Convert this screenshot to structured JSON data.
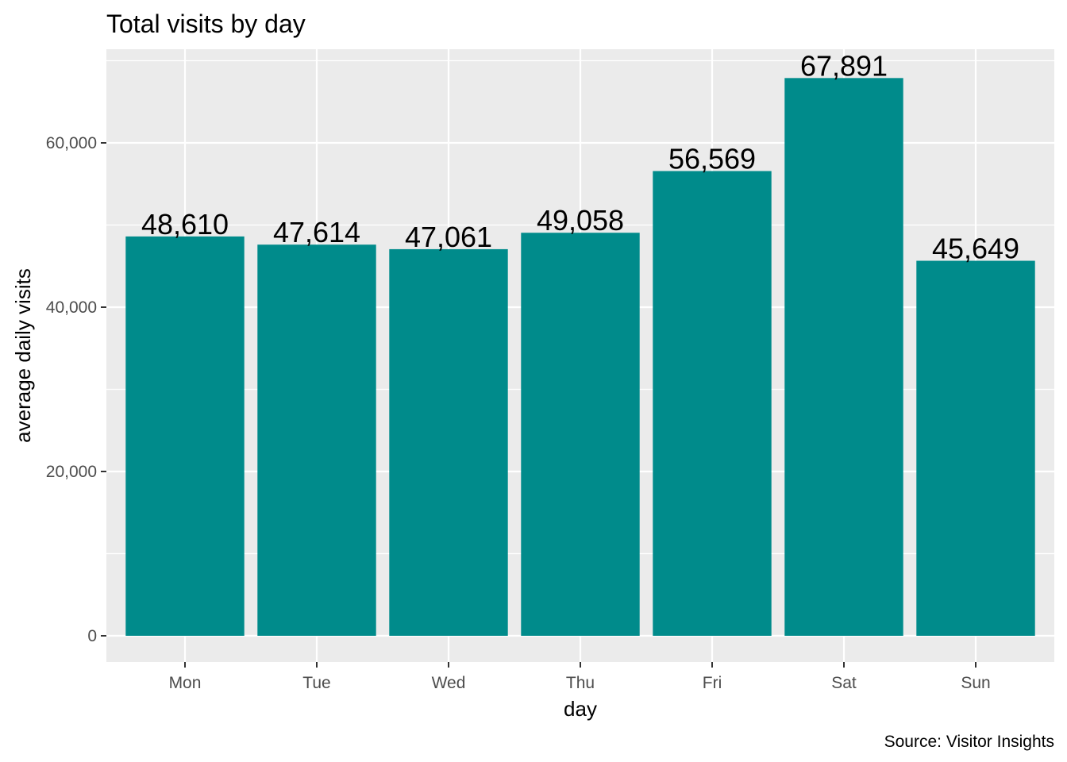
{
  "chart_data": {
    "type": "bar",
    "title": "Total visits by day",
    "xlabel": "day",
    "ylabel": "average daily visits",
    "categories": [
      "Mon",
      "Tue",
      "Wed",
      "Thu",
      "Fri",
      "Sat",
      "Sun"
    ],
    "values": [
      48610,
      47614,
      47061,
      49058,
      56569,
      67891,
      45649
    ],
    "value_labels": [
      "48,610",
      "47,614",
      "47,061",
      "49,058",
      "56,569",
      "67,891",
      "45,649"
    ],
    "ylim": [
      0,
      70000
    ],
    "y_ticks": [
      0,
      20000,
      40000,
      60000
    ],
    "y_tick_labels": [
      "0",
      "20,000",
      "40,000",
      "60,000"
    ],
    "caption": "Source: Visitor Insights",
    "grid": true,
    "legend": "none",
    "colors": {
      "bar": "#008B8B",
      "panel_background": "#EBEBEB",
      "grid": "#FFFFFF",
      "tick": "#333333"
    }
  }
}
